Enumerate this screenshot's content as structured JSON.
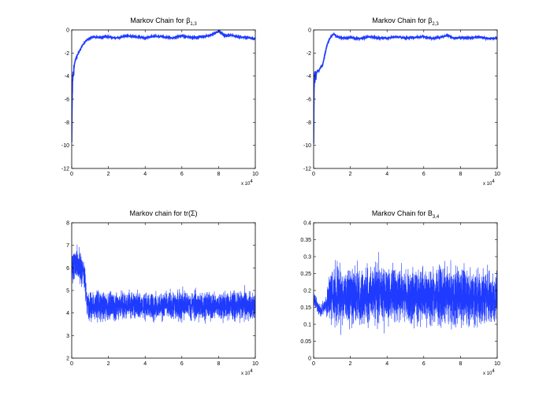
{
  "chart_data": [
    {
      "type": "line",
      "title": "Markov Chain for β",
      "title_subscript": "1,3",
      "xlim": [
        0,
        10
      ],
      "ylim": [
        -12,
        0
      ],
      "x_ticks": [
        "0",
        "2",
        "4",
        "6",
        "8",
        "10"
      ],
      "y_ticks": [
        "0",
        "-2",
        "-4",
        "-6",
        "-8",
        "-10",
        "-12"
      ],
      "x_multiplier_base": "x 10",
      "x_multiplier_exp": "4",
      "line_color": "#1f3bff",
      "series": [
        {
          "x": [
            0,
            0.02,
            0.05,
            0.1,
            0.15,
            0.2,
            0.3,
            0.4,
            0.5,
            0.6,
            0.7,
            0.8,
            0.9,
            1.0,
            1.2,
            1.5,
            2,
            2.5,
            3,
            3.5,
            4,
            4.5,
            5,
            5.5,
            6,
            6.5,
            7,
            7.5,
            7.9,
            8.0,
            8.3,
            8.7,
            9,
            9.5,
            10
          ],
          "y": [
            -10,
            -6.5,
            -4.2,
            -3.6,
            -3.0,
            -2.6,
            -2.2,
            -1.9,
            -1.6,
            -1.3,
            -1.1,
            -0.9,
            -0.8,
            -0.7,
            -0.6,
            -0.65,
            -0.6,
            -0.7,
            -0.5,
            -0.6,
            -0.7,
            -0.55,
            -0.6,
            -0.7,
            -0.5,
            -0.65,
            -0.6,
            -0.5,
            -0.2,
            -0.1,
            -0.5,
            -0.45,
            -0.6,
            -0.65,
            -0.75
          ]
        }
      ]
    },
    {
      "type": "line",
      "title": "Markov Chain for β",
      "title_subscript": "2,3",
      "xlim": [
        0,
        10
      ],
      "ylim": [
        -12,
        0
      ],
      "x_ticks": [
        "0",
        "2",
        "4",
        "6",
        "8",
        "10"
      ],
      "y_ticks": [
        "0",
        "-2",
        "-4",
        "-6",
        "-8",
        "-10",
        "-12"
      ],
      "x_multiplier_base": "x 10",
      "x_multiplier_exp": "4",
      "line_color": "#1f3bff",
      "series": [
        {
          "x": [
            0,
            0.02,
            0.05,
            0.1,
            0.2,
            0.3,
            0.4,
            0.5,
            0.6,
            0.7,
            0.8,
            0.9,
            1.0,
            1.1,
            1.3,
            1.5,
            2,
            2.5,
            3,
            3.5,
            4,
            4.5,
            5,
            5.5,
            6,
            6.5,
            7,
            7.3,
            7.6,
            8,
            8.5,
            9,
            9.5,
            10
          ],
          "y": [
            -10,
            -5.5,
            -4.1,
            -3.9,
            -3.6,
            -3.5,
            -3.2,
            -3.0,
            -2.2,
            -1.5,
            -1.0,
            -0.7,
            -0.5,
            -0.35,
            -0.6,
            -0.7,
            -0.65,
            -0.75,
            -0.6,
            -0.7,
            -0.7,
            -0.6,
            -0.7,
            -0.65,
            -0.6,
            -0.75,
            -0.6,
            -0.45,
            -0.7,
            -0.65,
            -0.7,
            -0.6,
            -0.75,
            -0.7
          ]
        }
      ]
    },
    {
      "type": "line",
      "title": "Markov chain for tr(Σ)",
      "xlim": [
        0,
        10
      ],
      "ylim": [
        2,
        8
      ],
      "x_ticks": [
        "0",
        "2",
        "4",
        "6",
        "8",
        "10"
      ],
      "y_ticks": [
        "8",
        "7",
        "6",
        "5",
        "4",
        "3",
        "2"
      ],
      "x_multiplier_base": "x 10",
      "x_multiplier_exp": "4",
      "line_color": "#1f3bff",
      "noise_band": [
        {
          "x": 0.0,
          "lo": 4.8,
          "hi": 7.3
        },
        {
          "x": 0.1,
          "lo": 5.0,
          "hi": 7.5
        },
        {
          "x": 0.3,
          "lo": 4.9,
          "hi": 7.4
        },
        {
          "x": 0.5,
          "lo": 4.8,
          "hi": 7.2
        },
        {
          "x": 0.7,
          "lo": 4.6,
          "hi": 6.9
        },
        {
          "x": 0.8,
          "lo": 3.7,
          "hi": 5.6
        },
        {
          "x": 0.9,
          "lo": 3.2,
          "hi": 5.3
        },
        {
          "x": 2.0,
          "lo": 3.3,
          "hi": 5.4
        },
        {
          "x": 4.0,
          "lo": 3.3,
          "hi": 5.3
        },
        {
          "x": 6.0,
          "lo": 3.3,
          "hi": 5.4
        },
        {
          "x": 8.0,
          "lo": 3.3,
          "hi": 5.3
        },
        {
          "x": 10.0,
          "lo": 3.3,
          "hi": 5.4
        }
      ]
    },
    {
      "type": "line",
      "title": "Markov Chain for B",
      "title_subscript": "3,4",
      "xlim": [
        0,
        10
      ],
      "ylim": [
        0,
        0.4
      ],
      "x_ticks": [
        "0",
        "2",
        "4",
        "6",
        "8",
        "10"
      ],
      "y_ticks": [
        "0.4",
        "0.35",
        "0.3",
        "0.25",
        "0.2",
        "0.15",
        "0.1",
        "0.05",
        "0"
      ],
      "x_multiplier_base": "x 10",
      "x_multiplier_exp": "4",
      "line_color": "#1f3bff",
      "noise_band": [
        {
          "x": 0.0,
          "lo": 0.15,
          "hi": 0.21
        },
        {
          "x": 0.2,
          "lo": 0.12,
          "hi": 0.18
        },
        {
          "x": 0.4,
          "lo": 0.11,
          "hi": 0.17
        },
        {
          "x": 0.6,
          "lo": 0.12,
          "hi": 0.19
        },
        {
          "x": 0.8,
          "lo": 0.07,
          "hi": 0.27
        },
        {
          "x": 1.0,
          "lo": 0.04,
          "hi": 0.33
        },
        {
          "x": 2.0,
          "lo": 0.05,
          "hi": 0.32
        },
        {
          "x": 4.0,
          "lo": 0.05,
          "hi": 0.33
        },
        {
          "x": 6.0,
          "lo": 0.05,
          "hi": 0.32
        },
        {
          "x": 8.0,
          "lo": 0.04,
          "hi": 0.32
        },
        {
          "x": 10.0,
          "lo": 0.05,
          "hi": 0.31
        }
      ]
    }
  ]
}
